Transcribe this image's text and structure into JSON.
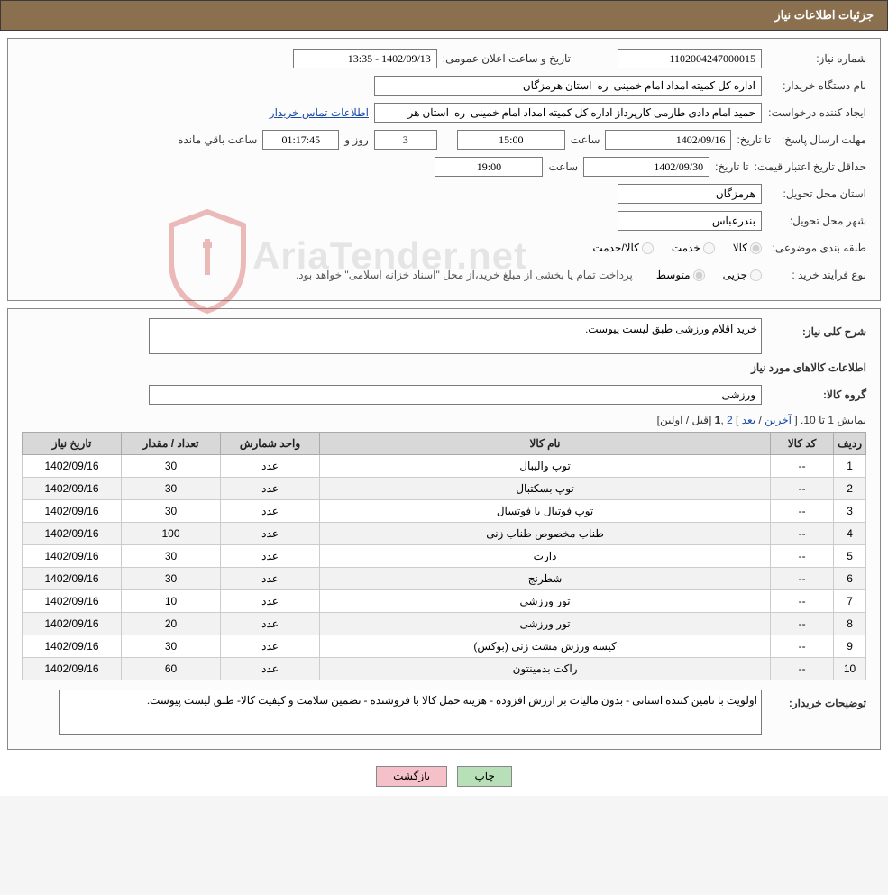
{
  "header": {
    "title": "جزئیات اطلاعات نیاز"
  },
  "fields": {
    "need_no_label": "شماره نیاز:",
    "need_no": "1102004247000015",
    "pub_time_label": "تاریخ و ساعت اعلان عمومی:",
    "pub_time": "1402/09/13 - 13:35",
    "buyer_org_label": "نام دستگاه خریدار:",
    "buyer_org": "اداره کل کمیته امداد امام خمینی  ره  استان هرمزگان",
    "requester_label": "ایجاد کننده درخواست:",
    "requester": "حمید امام دادی طارمی کارپرداز اداره کل کمیته امداد امام خمینی  ره  استان هر",
    "buyer_contact_link": "اطلاعات تماس خریدار",
    "deadline_label": "مهلت ارسال پاسخ:",
    "deadline_to_label": "تا تاریخ:",
    "deadline_date": "1402/09/16",
    "hour_label": "ساعت",
    "deadline_hour": "15:00",
    "days_and_label": "روز و",
    "days_remaining": "3",
    "time_remaining": "01:17:45",
    "time_remaining_label": "ساعت باقي مانده",
    "min_validity_label": "حداقل تاریخ اعتبار قیمت:",
    "min_validity_to_label": "تا تاریخ:",
    "min_validity_date": "1402/09/30",
    "min_validity_hour": "19:00",
    "delivery_province_label": "استان محل تحویل:",
    "delivery_province": "هرمزگان",
    "delivery_city_label": "شهر محل تحویل:",
    "delivery_city": "بندرعباس",
    "category_label": "طبقه بندی موضوعی:",
    "category_opts": {
      "goods": "کالا",
      "service": "خدمت",
      "goods_service": "کالا/خدمت"
    },
    "process_type_label": "نوع فرآیند خرید :",
    "process_opts": {
      "partial": "جزیی",
      "medium": "متوسط"
    },
    "process_note": "پرداخت تمام یا بخشی از مبلغ خرید،از محل \"اسناد خزانه اسلامی\" خواهد بود."
  },
  "desc": {
    "general_label": "شرح کلی نیاز:",
    "general_text": "خرید اقلام ورزشی طبق لیست پیوست.",
    "goods_info_title": "اطلاعات کالاهای مورد نیاز",
    "group_label": "گروه کالا:",
    "group_text": "ورزشی"
  },
  "pager": {
    "text_prefix": "نمایش 1 تا 10. [ ",
    "last": "آخرین",
    "sep1": " / ",
    "next": "بعد",
    "sep2": " ] ",
    "page2": "2",
    "comma": " ,",
    "page1": "1",
    "sep3": " [",
    "prev": "قبل",
    "sep4": " / ",
    "first": "اولین",
    "text_suffix": "]"
  },
  "table": {
    "columns": [
      "ردیف",
      "کد کالا",
      "نام کالا",
      "واحد شمارش",
      "تعداد / مقدار",
      "تاریخ نیاز"
    ],
    "rows": [
      [
        "1",
        "--",
        "توپ والیبال",
        "عدد",
        "30",
        "1402/09/16"
      ],
      [
        "2",
        "--",
        "توپ بسکتبال",
        "عدد",
        "30",
        "1402/09/16"
      ],
      [
        "3",
        "--",
        "توپ فوتبال یا فوتسال",
        "عدد",
        "30",
        "1402/09/16"
      ],
      [
        "4",
        "--",
        "طناب مخصوص طناب زنی",
        "عدد",
        "100",
        "1402/09/16"
      ],
      [
        "5",
        "--",
        "دارت",
        "عدد",
        "30",
        "1402/09/16"
      ],
      [
        "6",
        "--",
        "شطرنج",
        "عدد",
        "30",
        "1402/09/16"
      ],
      [
        "7",
        "--",
        "تور ورزشی",
        "عدد",
        "10",
        "1402/09/16"
      ],
      [
        "8",
        "--",
        "تور ورزشی",
        "عدد",
        "20",
        "1402/09/16"
      ],
      [
        "9",
        "--",
        "کیسه ورزش مشت زنی (بوکس)",
        "عدد",
        "30",
        "1402/09/16"
      ],
      [
        "10",
        "--",
        "راکت بدمینتون",
        "عدد",
        "60",
        "1402/09/16"
      ]
    ]
  },
  "buyer_notes": {
    "label": "توضیحات خریدار:",
    "text": "اولویت با تامین کننده استانی - بدون مالیات بر ارزش افزوده - هزینه حمل کالا با فروشنده - تضمین سلامت و کیفیت کالا- طبق لیست پیوست."
  },
  "buttons": {
    "print": "چاپ",
    "back": "بازگشت"
  },
  "style": {
    "header_bg": "#8b7050",
    "th_bg": "#d8d8d8",
    "link_color": "#1a4aa8",
    "btn_print_bg": "#b8e0b8",
    "btn_back_bg": "#f5c0c8",
    "col_widths": [
      "35px",
      "70px",
      "auto",
      "110px",
      "110px",
      "110px"
    ]
  },
  "watermark": {
    "text": "AriaTender.net",
    "shield_stroke": "#d04040"
  }
}
